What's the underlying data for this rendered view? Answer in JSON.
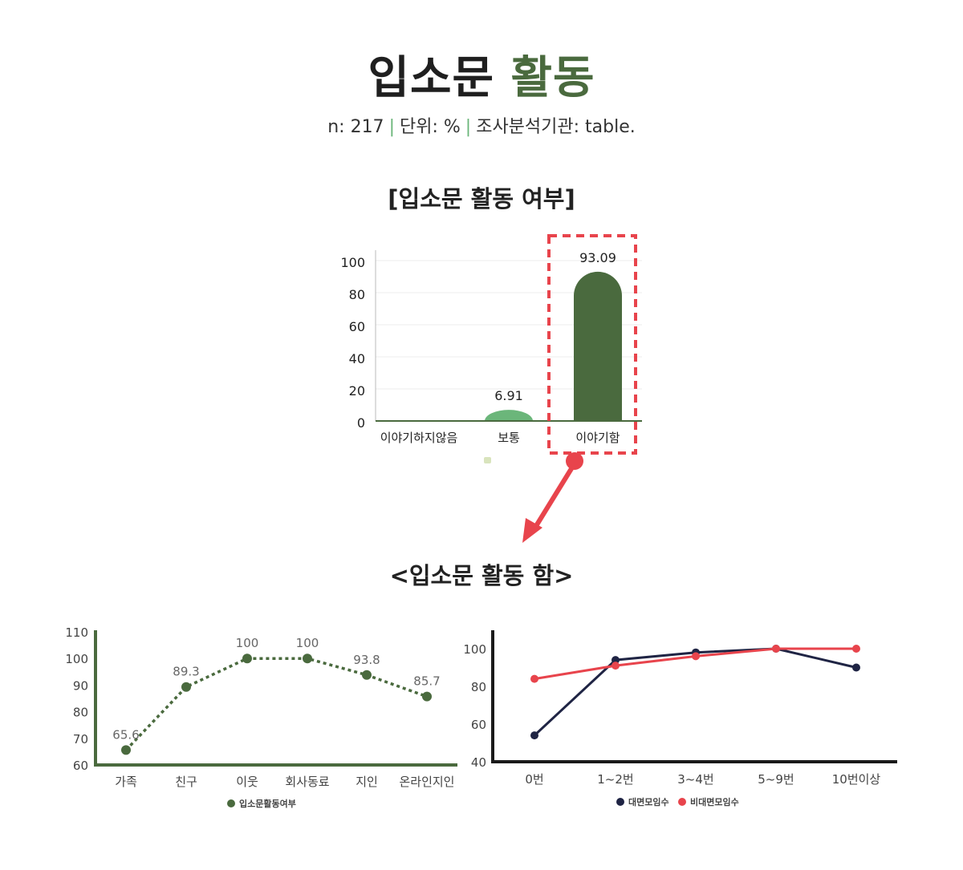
{
  "header": {
    "title_main": "입소문",
    "title_accent": "활동",
    "meta": {
      "n": "n: 217",
      "unit": "단위: %",
      "agency": "조사분석기관: table."
    }
  },
  "colors": {
    "accent_green": "#4a6a3e",
    "light_green": "#6bb67a",
    "navy": "#1f2444",
    "red": "#e8444c",
    "highlight_red": "#e8444c"
  },
  "section1": {
    "title": "[입소문 활동 여부]"
  },
  "section2": {
    "title": "<입소문 활동 함>"
  },
  "chart_data": [
    {
      "type": "bar",
      "title": "[입소문 활동 여부]",
      "categories": [
        "이야기하지않음",
        "보통",
        "이야기함"
      ],
      "values": [
        0,
        6.91,
        93.09
      ],
      "value_labels": [
        "",
        "6.91",
        "93.09"
      ],
      "yticks": [
        "0",
        "20",
        "40",
        "60",
        "80",
        "100"
      ],
      "ylim": [
        0,
        100
      ],
      "highlight_category": "이야기함",
      "grid": true
    },
    {
      "type": "line",
      "title": "<입소문 활동 함>",
      "categories": [
        "가족",
        "친구",
        "이웃",
        "회사동료",
        "지인",
        "온라인지인"
      ],
      "series": [
        {
          "name": "입소문활동여부",
          "values": [
            65.6,
            89.3,
            100,
            100,
            93.8,
            85.7
          ]
        }
      ],
      "value_labels": [
        "65.6",
        "89.3",
        "100",
        "100",
        "93.8",
        "85.7"
      ],
      "yticks": [
        "60",
        "70",
        "80",
        "90",
        "100",
        "110"
      ],
      "ylim": [
        60,
        110
      ],
      "line_style": "dotted",
      "legend": "bottom"
    },
    {
      "type": "line",
      "categories": [
        "0번",
        "1~2번",
        "3~4번",
        "5~9번",
        "10번이상"
      ],
      "series": [
        {
          "name": "대면모임수",
          "values": [
            54,
            94,
            98,
            100,
            90
          ]
        },
        {
          "name": "비대면모임수",
          "values": [
            84,
            91,
            96,
            100,
            100
          ]
        }
      ],
      "yticks": [
        "40",
        "60",
        "80",
        "100"
      ],
      "ylim": [
        40,
        110
      ],
      "legend": "bottom"
    }
  ]
}
